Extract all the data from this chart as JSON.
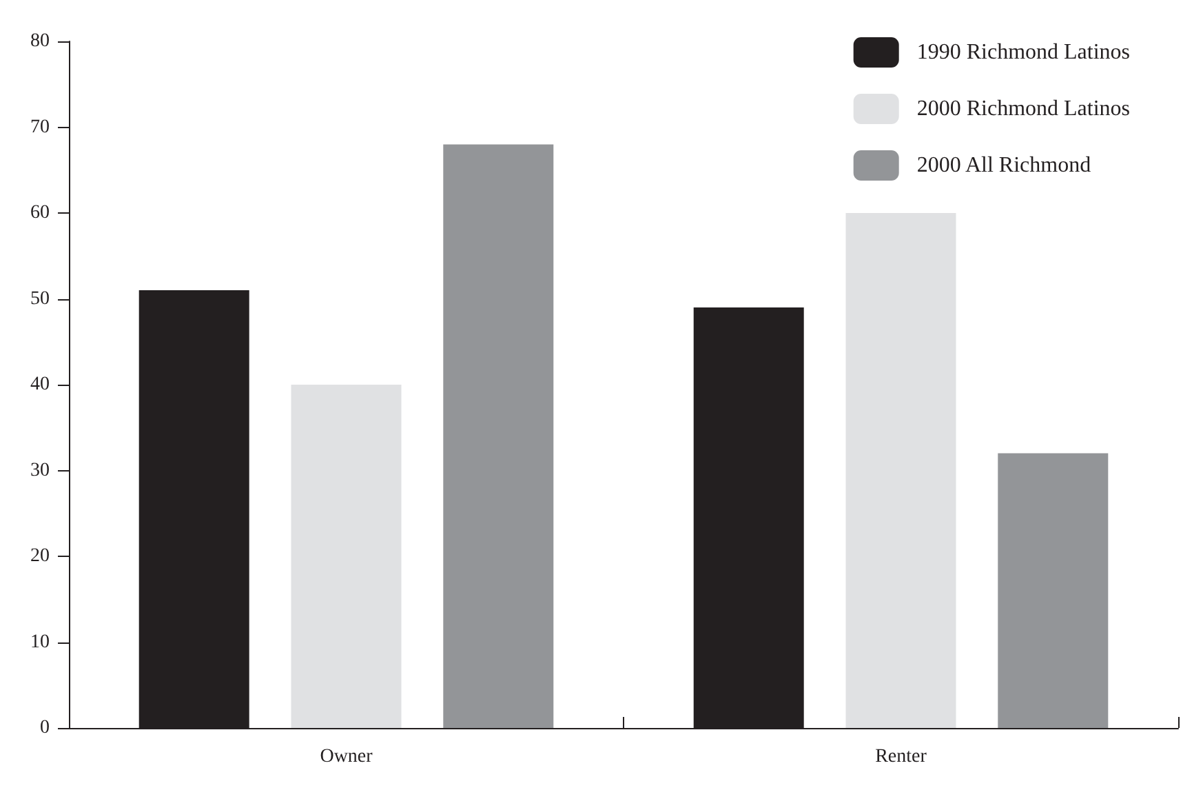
{
  "chart_data": {
    "type": "bar",
    "categories": [
      "Owner",
      "Renter"
    ],
    "series": [
      {
        "name": "1990 Richmond Latinos",
        "color": "#231f20",
        "values": [
          51,
          49
        ]
      },
      {
        "name": "2000 Richmond Latinos",
        "color": "#e0e1e3",
        "values": [
          40,
          60
        ]
      },
      {
        "name": "2000 All Richmond",
        "color": "#939598",
        "values": [
          68,
          32
        ]
      }
    ],
    "ylim": [
      0,
      80
    ],
    "yticks": [
      0,
      10,
      20,
      30,
      40,
      50,
      60,
      70,
      80
    ],
    "grid": false,
    "legend": "top right"
  }
}
